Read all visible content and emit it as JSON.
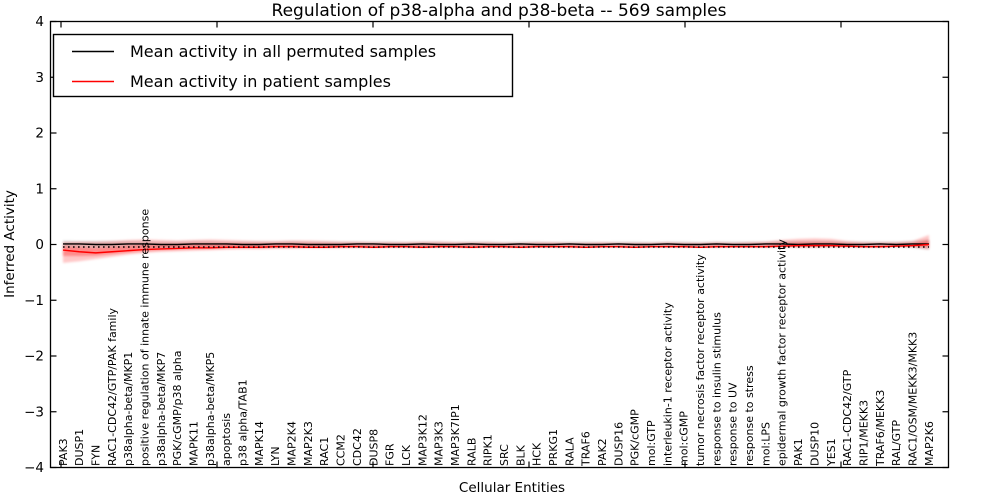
{
  "chart_data": {
    "type": "line",
    "title": "Regulation of p38-alpha and p38-beta -- 569 samples",
    "xlabel": "Cellular Entities",
    "ylabel": "Inferred Activity",
    "ylim": [
      -4,
      4
    ],
    "ytick_values": [
      4,
      3,
      2,
      1,
      0,
      -1,
      -2,
      -3,
      -4
    ],
    "ytick_labels": [
      "4",
      "3",
      "2",
      "1",
      "0",
      "−1",
      "−2",
      "−3",
      "−4"
    ],
    "grid": false,
    "legend": {
      "position": "upper left",
      "entries": [
        {
          "label": "Mean activity in all permuted samples",
          "color": "#000000"
        },
        {
          "label": "Mean activity in patient samples",
          "color": "#ff0000"
        }
      ]
    },
    "categories": [
      "PAK3",
      "DUSP1",
      "FYN",
      "RAC1-CDC42/GTP/PAK family",
      "p38alpha-beta/MKP1",
      "positive regulation of innate immune response",
      "p38alpha-beta/MKP7",
      "PGK/cGMP/p38 alpha",
      "MAPK11",
      "p38alpha-beta/MKP5",
      "apoptosis",
      "p38 alpha/TAB1",
      "MAPK14",
      "LYN",
      "MAP2K4",
      "MAP2K3",
      "RAC1",
      "CCM2",
      "CDC42",
      "DUSP8",
      "FGR",
      "LCK",
      "MAP3K12",
      "MAP3K3",
      "MAP3K7IP1",
      "RALB",
      "RIPK1",
      "SRC",
      "BLK",
      "HCK",
      "PRKG1",
      "RALA",
      "TRAF6",
      "PAK2",
      "DUSP16",
      "PGK/cGMP",
      "mol:GTP",
      "interleukin-1 receptor activity",
      "mol:cGMP",
      "tumor necrosis factor receptor activity",
      "response to insulin stimulus",
      "response to UV",
      "response to stress",
      "mol:LPS",
      "epidermal growth factor receptor activity",
      "PAK1",
      "DUSP10",
      "YES1",
      "RAC1-CDC42/GTP",
      "RIP1/MEKK3",
      "TRAF6/MEKK3",
      "RAL/GTP",
      "RAC1/OSM/MEKK3/MKK3",
      "MAP2K6"
    ],
    "series": [
      {
        "name": "Mean activity in all permuted samples",
        "color": "#000000",
        "style": "solid",
        "values": [
          0.01,
          0.01,
          0.0,
          0.0,
          0.01,
          0.01,
          0.0,
          0.0,
          0.01,
          0.01,
          0.01,
          0.0,
          0.0,
          0.01,
          0.01,
          0.0,
          0.0,
          0.0,
          0.01,
          0.01,
          0.0,
          0.0,
          0.01,
          0.0,
          0.0,
          0.01,
          0.0,
          0.0,
          0.01,
          0.0,
          0.0,
          0.01,
          0.0,
          0.0,
          0.01,
          0.0,
          0.0,
          0.01,
          0.0,
          0.0,
          0.01,
          0.0,
          0.0,
          0.01,
          0.01,
          0.0,
          0.01,
          0.01,
          0.0,
          0.0,
          0.01,
          0.0,
          0.01,
          0.01
        ]
      },
      {
        "name": "Mean activity in patient samples",
        "color": "#ff0000",
        "style": "solid",
        "values": [
          -0.1,
          -0.13,
          -0.15,
          -0.13,
          -0.11,
          -0.09,
          -0.08,
          -0.07,
          -0.06,
          -0.06,
          -0.05,
          -0.05,
          -0.05,
          -0.04,
          -0.04,
          -0.05,
          -0.05,
          -0.04,
          -0.04,
          -0.05,
          -0.04,
          -0.04,
          -0.05,
          -0.04,
          -0.04,
          -0.05,
          -0.04,
          -0.04,
          -0.05,
          -0.04,
          -0.04,
          -0.04,
          -0.05,
          -0.04,
          -0.04,
          -0.05,
          -0.04,
          -0.04,
          -0.04,
          -0.05,
          -0.04,
          -0.04,
          -0.04,
          -0.04,
          -0.03,
          -0.02,
          -0.02,
          -0.02,
          -0.03,
          -0.04,
          -0.04,
          -0.03,
          -0.02,
          0.0
        ]
      },
      {
        "name": "patient median (dotted)",
        "color": "#000000",
        "style": "dotted",
        "constant": -0.045
      }
    ],
    "bands": [
      {
        "name": "permuted samples spread",
        "color": "#000000",
        "opacity": 0.14,
        "upper": [
          0.07,
          0.06,
          0.06,
          0.06,
          0.06,
          0.06,
          0.05,
          0.05,
          0.06,
          0.06,
          0.05,
          0.05,
          0.05,
          0.05,
          0.06,
          0.05,
          0.05,
          0.05,
          0.05,
          0.05,
          0.05,
          0.04,
          0.05,
          0.05,
          0.04,
          0.05,
          0.05,
          0.04,
          0.05,
          0.05,
          0.04,
          0.05,
          0.05,
          0.04,
          0.05,
          0.05,
          0.04,
          0.05,
          0.05,
          0.04,
          0.05,
          0.05,
          0.05,
          0.05,
          0.06,
          0.06,
          0.06,
          0.06,
          0.05,
          0.05,
          0.05,
          0.05,
          0.06,
          0.09
        ],
        "lower": [
          -0.06,
          -0.06,
          -0.06,
          -0.06,
          -0.05,
          -0.05,
          -0.05,
          -0.05,
          -0.05,
          -0.05,
          -0.05,
          -0.05,
          -0.05,
          -0.05,
          -0.05,
          -0.05,
          -0.05,
          -0.04,
          -0.05,
          -0.05,
          -0.04,
          -0.05,
          -0.05,
          -0.04,
          -0.05,
          -0.05,
          -0.04,
          -0.05,
          -0.05,
          -0.04,
          -0.05,
          -0.05,
          -0.04,
          -0.05,
          -0.05,
          -0.04,
          -0.05,
          -0.05,
          -0.04,
          -0.05,
          -0.05,
          -0.04,
          -0.05,
          -0.05,
          -0.05,
          -0.05,
          -0.05,
          -0.05,
          -0.05,
          -0.05,
          -0.05,
          -0.05,
          -0.06,
          -0.09
        ]
      },
      {
        "name": "patient samples spread",
        "color": "#ff0000",
        "opacity": 0.22,
        "upper": [
          0.04,
          0.05,
          0.05,
          0.06,
          0.08,
          0.09,
          0.08,
          0.07,
          0.08,
          0.09,
          0.08,
          0.07,
          0.06,
          0.06,
          0.07,
          0.07,
          0.06,
          0.05,
          0.05,
          0.04,
          0.04,
          0.04,
          0.05,
          0.05,
          0.04,
          0.04,
          0.04,
          0.03,
          0.03,
          0.04,
          0.04,
          0.03,
          0.03,
          0.04,
          0.03,
          0.03,
          0.03,
          0.04,
          0.03,
          0.03,
          0.04,
          0.03,
          0.04,
          0.05,
          0.08,
          0.1,
          0.11,
          0.1,
          0.06,
          0.04,
          0.04,
          0.04,
          0.06,
          0.17
        ],
        "lower": [
          -0.33,
          -0.3,
          -0.26,
          -0.22,
          -0.18,
          -0.15,
          -0.13,
          -0.12,
          -0.11,
          -0.1,
          -0.09,
          -0.08,
          -0.08,
          -0.07,
          -0.07,
          -0.06,
          -0.06,
          -0.06,
          -0.05,
          -0.05,
          -0.05,
          -0.04,
          -0.05,
          -0.04,
          -0.04,
          -0.05,
          -0.04,
          -0.04,
          -0.04,
          -0.04,
          -0.03,
          -0.04,
          -0.04,
          -0.03,
          -0.03,
          -0.04,
          -0.03,
          -0.03,
          -0.04,
          -0.03,
          -0.04,
          -0.03,
          -0.03,
          -0.04,
          -0.04,
          -0.05,
          -0.05,
          -0.04,
          -0.04,
          -0.03,
          -0.04,
          -0.03,
          -0.04,
          -0.09
        ]
      }
    ]
  }
}
